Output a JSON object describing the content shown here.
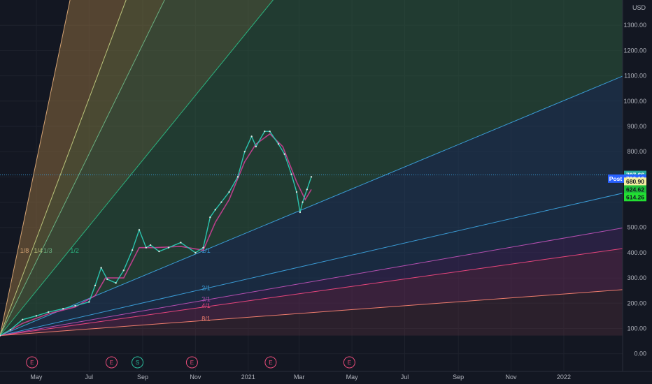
{
  "chart_data": {
    "type": "line",
    "title": "",
    "currency": "USD",
    "y_ticks": [
      0,
      100,
      200,
      300,
      400,
      500,
      600,
      700,
      800,
      900,
      1000,
      1100,
      1200,
      1300
    ],
    "y_tick_labels": [
      "0.00",
      "100.00",
      "200.00",
      "300.00",
      "400.00",
      "500.00",
      "",
      "",
      "800.00",
      "900.00",
      "1000.00",
      "1100.00",
      "1200.00",
      "1300.00"
    ],
    "ylim": [
      -70,
      1400
    ],
    "x_ticks": [
      {
        "date": "2020-05-01",
        "label": "May"
      },
      {
        "date": "2020-07-01",
        "label": "Jul"
      },
      {
        "date": "2020-09-01",
        "label": "Sep"
      },
      {
        "date": "2020-11-01",
        "label": "Nov"
      },
      {
        "date": "2021-01-01",
        "label": "2021"
      },
      {
        "date": "2021-03-01",
        "label": "Mar"
      },
      {
        "date": "2021-05-01",
        "label": "May"
      },
      {
        "date": "2021-07-01",
        "label": "Jul"
      },
      {
        "date": "2021-09-01",
        "label": "Sep"
      },
      {
        "date": "2021-11-01",
        "label": "Nov"
      },
      {
        "date": "2022-01-01",
        "label": "2022"
      }
    ],
    "xlim": [
      "2020-03-20",
      "2022-03-10"
    ],
    "price_series": {
      "name": "",
      "x": [
        "2020-03-20",
        "2020-04-01",
        "2020-04-15",
        "2020-05-01",
        "2020-05-15",
        "2020-06-01",
        "2020-06-15",
        "2020-07-01",
        "2020-07-08",
        "2020-07-15",
        "2020-07-22",
        "2020-08-01",
        "2020-08-10",
        "2020-08-20",
        "2020-08-28",
        "2020-09-05",
        "2020-09-10",
        "2020-09-20",
        "2020-10-01",
        "2020-10-15",
        "2020-11-01",
        "2020-11-10",
        "2020-11-18",
        "2020-11-24",
        "2020-12-01",
        "2020-12-10",
        "2020-12-20",
        "2020-12-28",
        "2021-01-05",
        "2021-01-10",
        "2021-01-20",
        "2021-01-26",
        "2021-02-05",
        "2021-02-12",
        "2021-02-20",
        "2021-02-26",
        "2021-03-02",
        "2021-03-05",
        "2021-03-10",
        "2021-03-15"
      ],
      "y": [
        72,
        95,
        135,
        150,
        165,
        178,
        190,
        205,
        270,
        340,
        295,
        280,
        330,
        410,
        490,
        420,
        430,
        405,
        420,
        440,
        400,
        420,
        540,
        570,
        600,
        640,
        700,
        800,
        860,
        820,
        880,
        880,
        830,
        790,
        710,
        640,
        560,
        600,
        650,
        700
      ]
    },
    "ma_series": {
      "name": "",
      "x": [
        "2020-03-20",
        "2020-04-15",
        "2020-05-15",
        "2020-06-15",
        "2020-07-08",
        "2020-07-20",
        "2020-08-10",
        "2020-08-28",
        "2020-09-15",
        "2020-10-15",
        "2020-11-10",
        "2020-11-24",
        "2020-12-10",
        "2020-12-28",
        "2021-01-10",
        "2021-01-26",
        "2021-02-10",
        "2021-02-26",
        "2021-03-08",
        "2021-03-15"
      ],
      "y": [
        70,
        120,
        158,
        185,
        230,
        300,
        300,
        420,
        420,
        425,
        410,
        520,
        610,
        760,
        830,
        870,
        820,
        680,
        610,
        650
      ]
    },
    "gann_fan": {
      "origin": {
        "date": "2020-03-20",
        "price": 72
      },
      "lines": [
        {
          "label": "1/8",
          "color": "#d4a373",
          "through": {
            "date": "2020-04-09",
            "price": 400
          }
        },
        {
          "label": "1/4",
          "color": "#b8c27a",
          "through": {
            "date": "2020-04-25",
            "price": 400
          }
        },
        {
          "label": "1/3",
          "color": "#6ab080",
          "through": {
            "date": "2020-05-06",
            "price": 400
          }
        },
        {
          "label": "1/2",
          "color": "#2bb37f",
          "through": {
            "date": "2020-06-06",
            "price": 400
          }
        },
        {
          "label": "1/1",
          "color": "#3a9bd5",
          "through": {
            "date": "2020-11-05",
            "price": 400
          }
        },
        {
          "label": "2/1",
          "color": "#3a9bd5",
          "through": {
            "date": "2020-11-05",
            "price": 252
          }
        },
        {
          "label": "3/1",
          "color": "#b44fb0",
          "through": {
            "date": "2020-11-05",
            "price": 208
          }
        },
        {
          "label": "4/1",
          "color": "#e8457c",
          "through": {
            "date": "2020-11-05",
            "price": 182
          }
        },
        {
          "label": "8/1",
          "color": "#ef7d6d",
          "through": {
            "date": "2020-11-05",
            "price": 130
          }
        }
      ],
      "fills": [
        "#8b6a3e",
        "#78733f",
        "#5a6d44",
        "#2e5a3e",
        "#233e5c",
        "#1f3a5a",
        "#3d2a5c",
        "#5a2a50",
        "#5a3040"
      ]
    },
    "events": [
      {
        "date": "2020-04-26",
        "label": "E",
        "color": "#e84c7a"
      },
      {
        "date": "2020-07-27",
        "label": "E",
        "color": "#e84c7a"
      },
      {
        "date": "2020-08-26",
        "label": "S",
        "color": "#2bbf9e"
      },
      {
        "date": "2020-10-28",
        "label": "E",
        "color": "#e84c7a"
      },
      {
        "date": "2021-01-27",
        "label": "E",
        "color": "#e84c7a"
      },
      {
        "date": "2021-04-28",
        "label": "E",
        "color": "#e84c7a"
      }
    ],
    "horizontal_line": {
      "price": 707.66
    },
    "price_labels": [
      {
        "text": "707.66",
        "price": 707.66,
        "bg": "#26a69a",
        "fg": "#ffffff"
      },
      {
        "text": "706.10",
        "price": 693,
        "bg": "#2962ff",
        "fg": "#ffffff",
        "tag": "Post"
      },
      {
        "text": "680.90",
        "price": 680.9,
        "bg": "#f5f0a0",
        "fg": "#131722"
      },
      {
        "text": "624.62",
        "price": 650,
        "bg": "#1fbf3a",
        "fg": "#131722"
      },
      {
        "text": "614.26",
        "price": 620,
        "bg": "#22e032",
        "fg": "#131722"
      }
    ],
    "grid": true
  }
}
